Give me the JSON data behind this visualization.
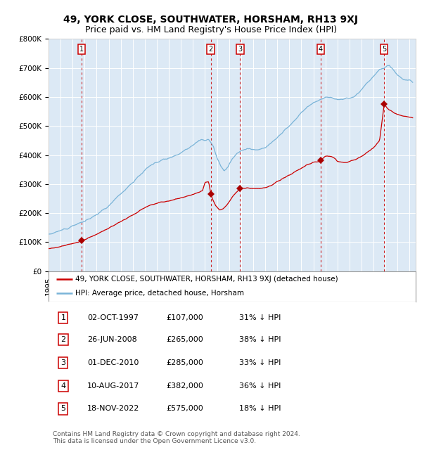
{
  "title": "49, YORK CLOSE, SOUTHWATER, HORSHAM, RH13 9XJ",
  "subtitle": "Price paid vs. HM Land Registry's House Price Index (HPI)",
  "bg_color": "#dce9f5",
  "line_color_hpi": "#7ab4d8",
  "line_color_price": "#cc0000",
  "marker_color": "#aa0000",
  "vline_color": "#cc0000",
  "grid_color": "#ffffff",
  "ylim": [
    0,
    800000
  ],
  "yticks": [
    0,
    100000,
    200000,
    300000,
    400000,
    500000,
    600000,
    700000,
    800000
  ],
  "ytick_labels": [
    "£0",
    "£100K",
    "£200K",
    "£300K",
    "£400K",
    "£500K",
    "£600K",
    "£700K",
    "£800K"
  ],
  "xlim_start": 1995.0,
  "xlim_end": 2025.5,
  "sale_dates": [
    1997.75,
    2008.48,
    2010.92,
    2017.61,
    2022.88
  ],
  "sale_prices": [
    107000,
    265000,
    285000,
    382000,
    575000
  ],
  "sale_labels": [
    "1",
    "2",
    "3",
    "4",
    "5"
  ],
  "legend_label_price": "49, YORK CLOSE, SOUTHWATER, HORSHAM, RH13 9XJ (detached house)",
  "legend_label_hpi": "HPI: Average price, detached house, Horsham",
  "table_rows": [
    [
      "1",
      "02-OCT-1997",
      "£107,000",
      "31% ↓ HPI"
    ],
    [
      "2",
      "26-JUN-2008",
      "£265,000",
      "38% ↓ HPI"
    ],
    [
      "3",
      "01-DEC-2010",
      "£285,000",
      "33% ↓ HPI"
    ],
    [
      "4",
      "10-AUG-2017",
      "£382,000",
      "36% ↓ HPI"
    ],
    [
      "5",
      "18-NOV-2022",
      "£575,000",
      "18% ↓ HPI"
    ]
  ],
  "footer": "Contains HM Land Registry data © Crown copyright and database right 2024.\nThis data is licensed under the Open Government Licence v3.0.",
  "title_fontsize": 10,
  "subtitle_fontsize": 9,
  "tick_fontsize": 7.5,
  "legend_fontsize": 7.5,
  "table_fontsize": 8,
  "footer_fontsize": 6.5
}
